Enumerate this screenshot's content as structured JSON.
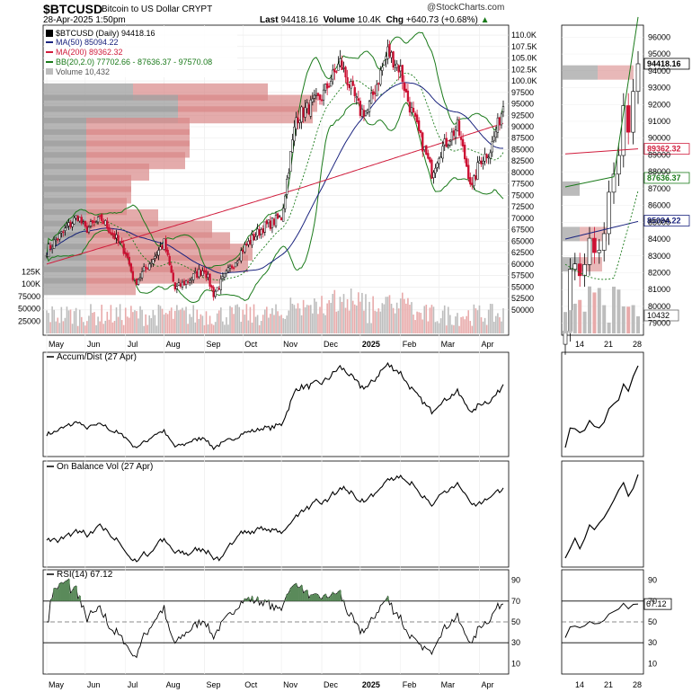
{
  "header": {
    "symbol": "$BTCUSD",
    "name": "Bitcoin to US Dollar  CRYPT",
    "date": "28-Apr-2025 1:50pm",
    "brand": "@StockCharts.com",
    "last_label": "Last",
    "last_value": "94418.16",
    "volume_label": "Volume",
    "volume_value": "10.4K",
    "chg_label": "Chg",
    "chg_value": "+640.73 (+0.68%)"
  },
  "legend": {
    "main": "$BTCUSD (Daily) 94418.16",
    "ma50": "MA(50) 85094.22",
    "ma200": "MA(200) 89362.32",
    "bb": "BB(20,2.0) 77702.66 - 87636.37 - 97570.08",
    "volume": "Volume 10,432"
  },
  "colors": {
    "candle_up": "#000000",
    "candle_down": "#cc1133",
    "ma50": "#1a237e",
    "ma200": "#d01c3c",
    "bb": "#1a7a1a",
    "volume_up": "#bdbdbd",
    "volume_down": "#e8aaaa",
    "rsi_fill": "#5a8a5a"
  },
  "panels": {
    "adl_label": "Accum/Dist (27 Apr)",
    "obv_label": "On Balance Vol (27 Apr)",
    "rsi_label": "RSI(14) 67.12"
  },
  "axes": {
    "price_ticks": [
      "110.0K",
      "107.5K",
      "105.0K",
      "102.5K",
      "100.0K",
      "97500",
      "95000",
      "92500",
      "90000",
      "87500",
      "85000",
      "82500",
      "80000",
      "77500",
      "75000",
      "72500",
      "70000",
      "67500",
      "65000",
      "62500",
      "60000",
      "57500",
      "55000",
      "52500",
      "50000"
    ],
    "volume_ticks": [
      "125K",
      "100K",
      "75000",
      "50000",
      "25000"
    ],
    "rsi_ticks": [
      "90",
      "70",
      "50",
      "30",
      "10"
    ],
    "x_labels_main": [
      "May",
      "Jun",
      "Jul",
      "Aug",
      "Sep",
      "Oct",
      "Nov",
      "Dec",
      "2025",
      "Feb",
      "Mar",
      "Apr"
    ],
    "x_labels_zoom": [
      "14",
      "21",
      "28"
    ],
    "zoom_price_ticks": [
      "96000",
      "95000",
      "94000",
      "93000",
      "92000",
      "91000",
      "90000",
      "89000",
      "88000",
      "87000",
      "86000",
      "85000",
      "84000",
      "83000",
      "82000",
      "81000",
      "80000",
      "79000"
    ],
    "zoom_rsi_ticks": [
      "90",
      "70",
      "50",
      "30",
      "10"
    ],
    "zoom_badges": {
      "last": "94418.16",
      "ma200": "89362.32",
      "bb_mid": "87636.37",
      "ma50": "85094.22",
      "volume": "10432",
      "rsi": "67.12"
    }
  },
  "chart_data": [
    {
      "type": "candlestick",
      "title": "$BTCUSD (Daily) 94418.16",
      "period": "May 2024 - Apr 2025",
      "ylim": [
        48000,
        111000
      ],
      "monthly_close_approx": {
        "x": [
          "May",
          "Jun",
          "Jul",
          "Aug",
          "Sep",
          "Oct",
          "Nov",
          "Dec",
          "Jan",
          "Feb",
          "Mar",
          "Apr"
        ],
        "y": [
          67500,
          62700,
          64600,
          59000,
          63300,
          70200,
          96500,
          93400,
          102400,
          84300,
          82500,
          94400
        ]
      },
      "series": [
        {
          "name": "MA(50)",
          "last": 85094.22
        },
        {
          "name": "MA(200)",
          "last": 89362.32
        },
        {
          "name": "BB(20,2.0)",
          "lower": 77702.66,
          "middle": 87636.37,
          "upper": 97570.08
        }
      ]
    },
    {
      "type": "bar",
      "title": "Volume 10,432",
      "ylim": [
        0,
        140000
      ],
      "last": 10432
    },
    {
      "type": "line",
      "title": "Accum/Dist (27 Apr)"
    },
    {
      "type": "line",
      "title": "On Balance Vol (27 Apr)"
    },
    {
      "type": "line",
      "title": "RSI(14) 67.12",
      "ylim": [
        0,
        100
      ],
      "reference_lines": [
        70,
        50,
        30
      ],
      "last": 67.12
    }
  ]
}
